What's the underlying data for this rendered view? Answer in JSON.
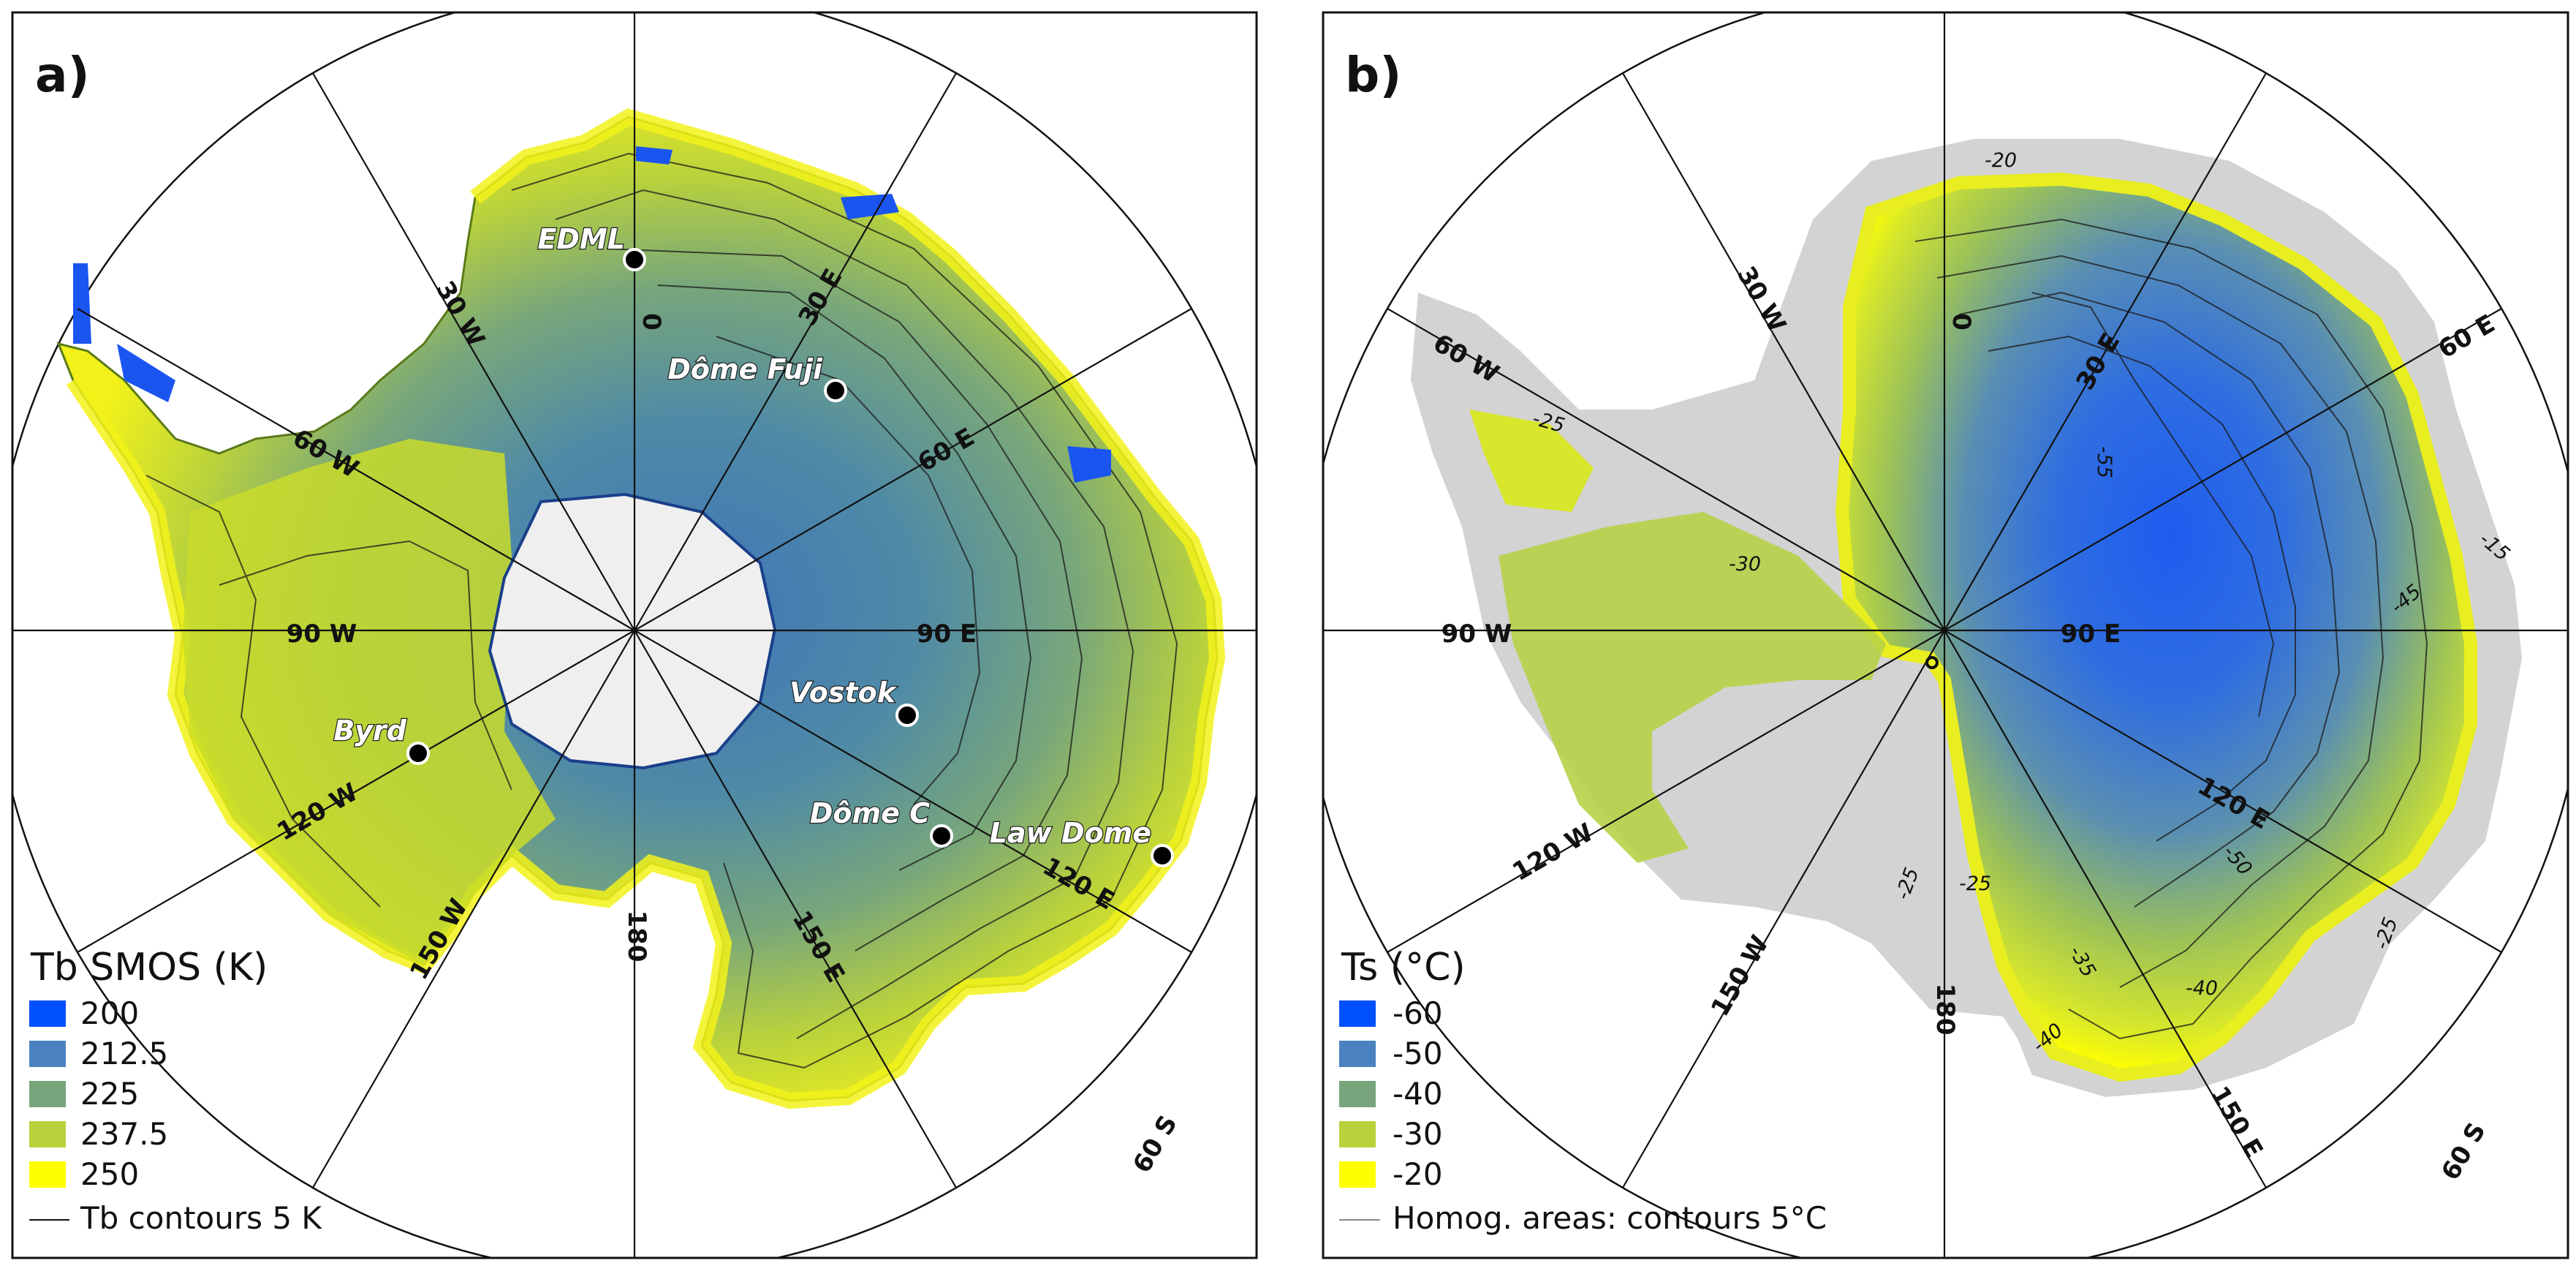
{
  "panels": [
    {
      "letter": "a)",
      "legend": {
        "title": "Tb SMOS (K)",
        "entries": [
          {
            "label": "200",
            "color": "#0050ff"
          },
          {
            "label": "212.5",
            "color": "#4a82c0"
          },
          {
            "label": "225",
            "color": "#78a57c"
          },
          {
            "label": "237.5",
            "color": "#b9d23c"
          },
          {
            "label": "250",
            "color": "#ffff00"
          }
        ],
        "contour_label": "Tb contours 5 K"
      },
      "longitude_labels": [
        "0",
        "30 E",
        "60 E",
        "90 E",
        "120 E",
        "150 E",
        "180",
        "150 W",
        "120 W",
        "90 W",
        "60 W",
        "30 W"
      ],
      "latitude_label": "60 S",
      "sites": [
        "EDML",
        "Dôme Fuji",
        "Vostok",
        "Dôme C",
        "Law Dome",
        "Byrd"
      ]
    },
    {
      "letter": "b)",
      "legend": {
        "title": "Ts (°C)",
        "entries": [
          {
            "label": "-60",
            "color": "#0050ff"
          },
          {
            "label": "-50",
            "color": "#4a82c0"
          },
          {
            "label": "-40",
            "color": "#78a57c"
          },
          {
            "label": "-30",
            "color": "#b9d23c"
          },
          {
            "label": "-20",
            "color": "#ffff00"
          }
        ],
        "contour_label": "Homog. areas: contours 5°C"
      },
      "longitude_labels": [
        "0",
        "30 E",
        "60 E",
        "90 E",
        "120 E",
        "150 E",
        "180",
        "150 W",
        "120 W",
        "90 W",
        "60 W",
        "30 W"
      ],
      "latitude_label": "60 S",
      "contour_labels": [
        "-20",
        "-25",
        "-30",
        "-55",
        "-15",
        "-45",
        "-50",
        "-25",
        "-25",
        "-35",
        "-40",
        "-40",
        "-25"
      ]
    }
  ]
}
